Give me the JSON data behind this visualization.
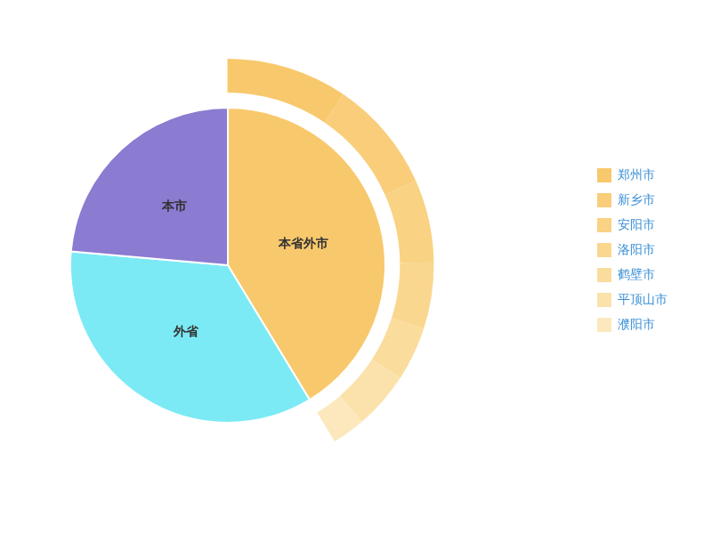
{
  "chart_data": [
    {
      "type": "pie",
      "categories": [
        "本省外市",
        "外省",
        "本市"
      ],
      "values": [
        41.3,
        35.1,
        23.6
      ],
      "colors": [
        "#f8c86c",
        "#7beaf5",
        "#8b7bd1"
      ],
      "legend": false
    },
    {
      "type": "donut",
      "categories": [
        "郑州市",
        "新乡市",
        "安阳市",
        "洛阳市",
        "鹤壁市",
        "平顶山市",
        "濮阳市"
      ],
      "values": [
        23.0,
        21.3,
        15.7,
        12.6,
        10.2,
        10.9,
        6.3
      ],
      "colors": [
        "#f8c86c",
        "#f9cd7a",
        "#f9d283",
        "#fad78f",
        "#fadc9c",
        "#fbe2ab",
        "#fce8bc"
      ],
      "legend": "right"
    }
  ]
}
